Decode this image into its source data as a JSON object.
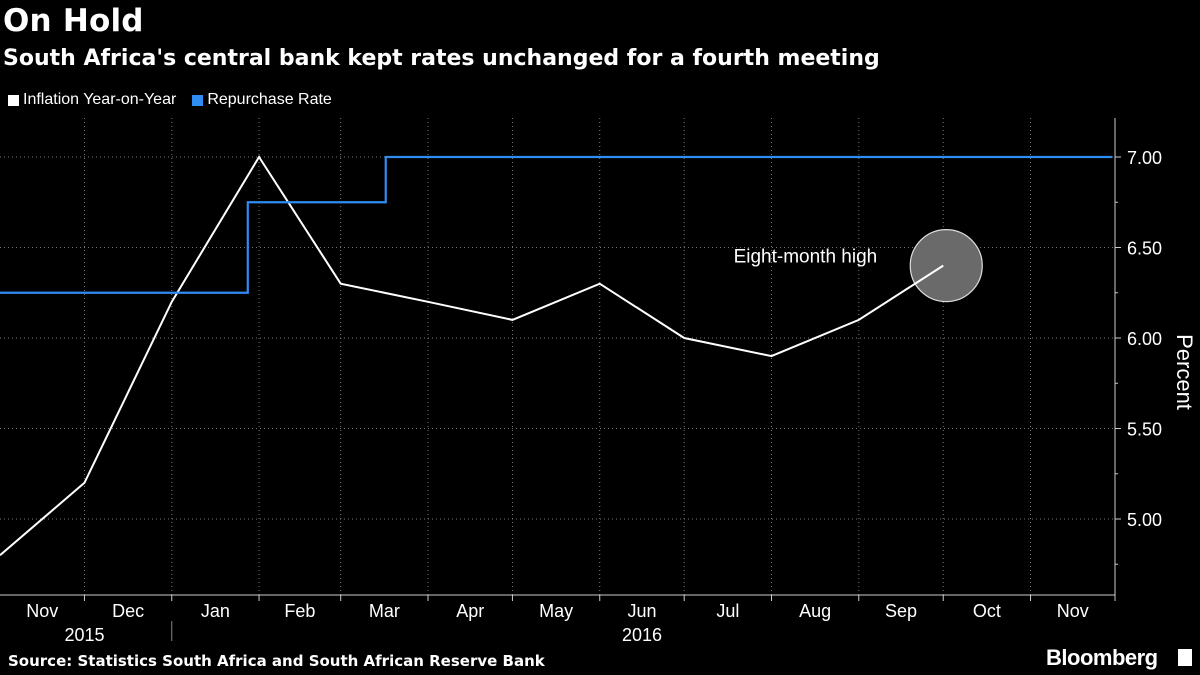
{
  "header": {
    "title": "On Hold",
    "subtitle": "South Africa's central bank kept rates unchanged for a fourth meeting"
  },
  "legend": [
    {
      "label": "Inflation Year-on-Year",
      "color": "#ffffff"
    },
    {
      "label": "Repurchase Rate",
      "color": "#2f8cf0"
    }
  ],
  "footer": {
    "source": "Source: Statistics South Africa and South African Reserve Bank",
    "brand": "Bloomberg"
  },
  "chart_data": {
    "type": "line",
    "ylabel": "Percent",
    "ylim": [
      4.6,
      7.2
    ],
    "y_ticks": [
      5.0,
      5.5,
      6.0,
      6.5,
      7.0
    ],
    "y_tick_labels": [
      "5.00",
      "5.50",
      "6.00",
      "6.50",
      "7.00"
    ],
    "x_range": [
      "2015-11-01",
      "2016-12-01"
    ],
    "x_month_labels": [
      {
        "label": "Nov",
        "date": "2015-11-01"
      },
      {
        "label": "Dec",
        "date": "2015-12-01"
      },
      {
        "label": "Jan",
        "date": "2016-01-01"
      },
      {
        "label": "Feb",
        "date": "2016-02-01"
      },
      {
        "label": "Mar",
        "date": "2016-03-01"
      },
      {
        "label": "Apr",
        "date": "2016-04-01"
      },
      {
        "label": "May",
        "date": "2016-05-01"
      },
      {
        "label": "Jun",
        "date": "2016-06-01"
      },
      {
        "label": "Jul",
        "date": "2016-07-01"
      },
      {
        "label": "Aug",
        "date": "2016-08-01"
      },
      {
        "label": "Sep",
        "date": "2016-09-01"
      },
      {
        "label": "Oct",
        "date": "2016-10-01"
      },
      {
        "label": "Nov",
        "date": "2016-11-01"
      }
    ],
    "x_year_labels": [
      {
        "label": "2015",
        "date": "2015-11-01"
      },
      {
        "label": "2016",
        "date": "2016-06-01"
      }
    ],
    "grid": true,
    "legend_position": "top-left",
    "series": [
      {
        "name": "Inflation Year-on-Year",
        "color": "#ffffff",
        "points": [
          {
            "date": "2015-11-01",
            "value": 4.8
          },
          {
            "date": "2015-12-01",
            "value": 5.2
          },
          {
            "date": "2016-01-01",
            "value": 6.2
          },
          {
            "date": "2016-02-01",
            "value": 7.0
          },
          {
            "date": "2016-03-01",
            "value": 6.3
          },
          {
            "date": "2016-04-01",
            "value": 6.2
          },
          {
            "date": "2016-05-01",
            "value": 6.1
          },
          {
            "date": "2016-06-01",
            "value": 6.3
          },
          {
            "date": "2016-07-01",
            "value": 6.0
          },
          {
            "date": "2016-08-01",
            "value": 5.9
          },
          {
            "date": "2016-09-01",
            "value": 6.1
          },
          {
            "date": "2016-10-01",
            "value": 6.4
          }
        ]
      },
      {
        "name": "Repurchase Rate",
        "color": "#2f8cf0",
        "step": true,
        "points": [
          {
            "date": "2015-11-01",
            "value": 6.25
          },
          {
            "date": "2016-01-28",
            "value": 6.75
          },
          {
            "date": "2016-03-17",
            "value": 7.0
          },
          {
            "date": "2016-11-30",
            "value": 7.0
          }
        ]
      }
    ],
    "annotations": [
      {
        "text": "Eight-month high",
        "date": "2016-10-01",
        "value": 6.4
      }
    ]
  }
}
